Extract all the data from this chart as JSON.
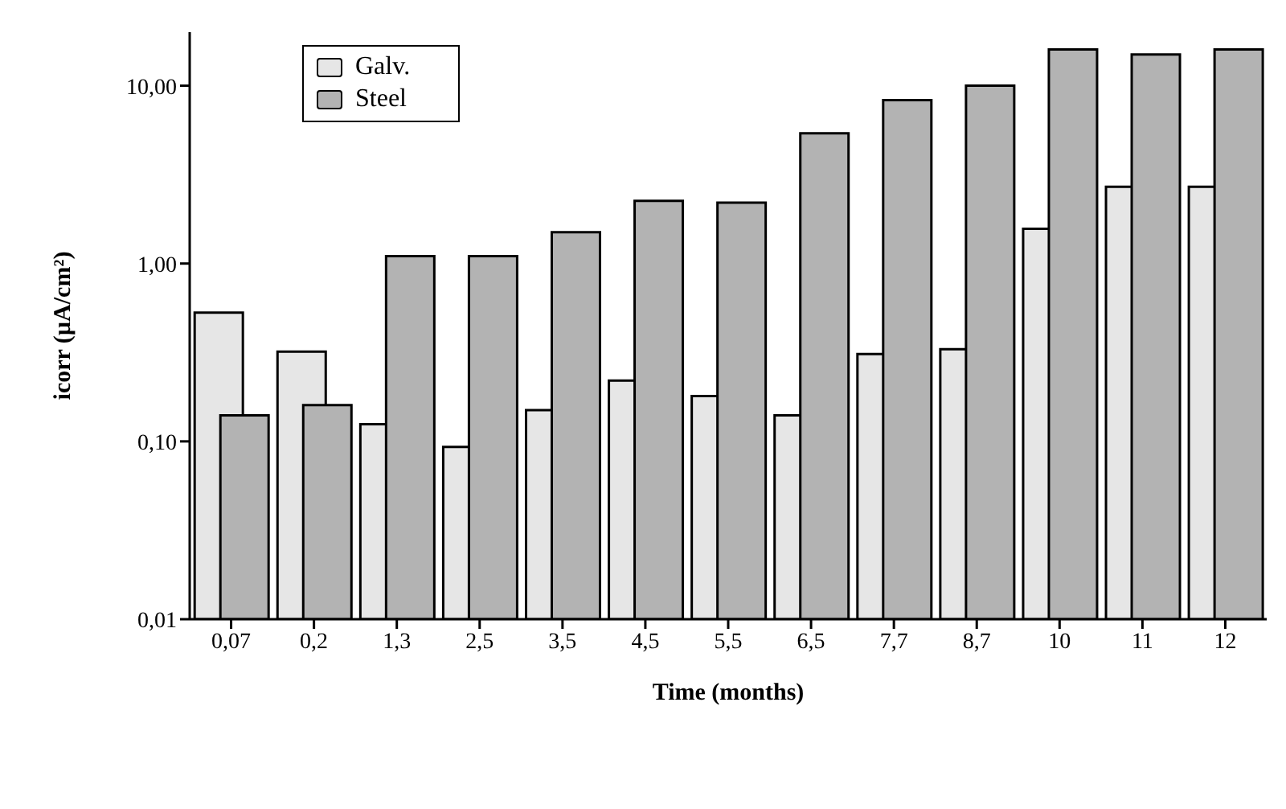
{
  "chart_data": {
    "type": "bar",
    "xlabel": "Time (months)",
    "ylabel": "icorr (µA/cm²)",
    "categories": [
      "0,07",
      "0,2",
      "1,3",
      "2,5",
      "3,5",
      "4,5",
      "5,5",
      "6,5",
      "7,7",
      "8,7",
      "10",
      "11",
      "12"
    ],
    "series": [
      {
        "name": "Galv.",
        "color": "#e6e6e6",
        "values": [
          0.53,
          0.32,
          0.125,
          0.093,
          0.15,
          0.22,
          0.18,
          0.14,
          0.31,
          0.33,
          1.57,
          2.7,
          2.7
        ]
      },
      {
        "name": "Steel",
        "color": "#b3b3b3",
        "values": [
          0.14,
          0.16,
          1.1,
          1.1,
          1.5,
          2.25,
          2.2,
          5.4,
          8.3,
          10,
          16,
          15,
          16
        ]
      }
    ],
    "log": "y",
    "ylim": [
      0.01,
      20
    ],
    "yticks": [
      {
        "value": 0.01,
        "label": "0,01"
      },
      {
        "value": 0.1,
        "label": "0,10"
      },
      {
        "value": 1,
        "label": "1,00"
      },
      {
        "value": 10,
        "label": "10,00"
      }
    ],
    "legend": "top left"
  }
}
